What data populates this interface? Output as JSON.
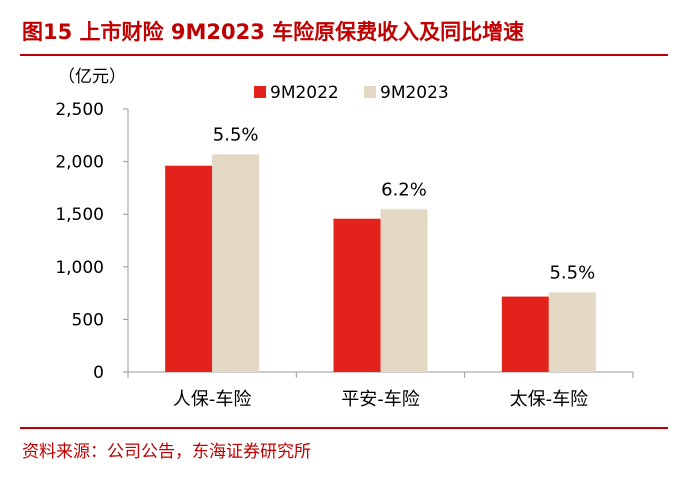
{
  "figure": {
    "title": "图15  上市财险 9M2023 车险原保费收入及同比增速",
    "source": "资料来源：公司公告，东海证券研究所"
  },
  "colors": {
    "accent": "#c00000",
    "series_2022": "#e3231b",
    "series_2023": "#e2d8c4",
    "axis": "#999999"
  },
  "chart_data": {
    "type": "bar",
    "ylabel": "（亿元）",
    "ylim": [
      0,
      2500
    ],
    "yticks": [
      0,
      500,
      1000,
      1500,
      2000,
      2500
    ],
    "ytick_labels": [
      "0",
      "500",
      "1,000",
      "1,500",
      "2,000",
      "2,500"
    ],
    "categories": [
      "人保-车险",
      "平安-车险",
      "太保-车险"
    ],
    "series": [
      {
        "name": "9M2022",
        "values": [
          1961,
          1457,
          717
        ]
      },
      {
        "name": "9M2023",
        "values": [
          2069,
          1547,
          757
        ]
      }
    ],
    "growth_labels": [
      "5.5%",
      "6.2%",
      "5.5%"
    ],
    "legend_position": "top",
    "grid": false
  }
}
